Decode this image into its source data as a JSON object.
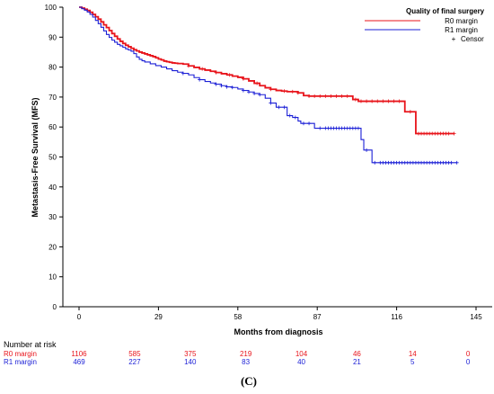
{
  "chart_data": {
    "type": "line",
    "title": "",
    "xlabel": "Months from diagnosis",
    "ylabel": "Metastasis-Free Survival (MFS)",
    "xlim": [
      0,
      145
    ],
    "ylim": [
      0,
      100
    ],
    "x_ticks": [
      0,
      29,
      58,
      87,
      116,
      145
    ],
    "y_ticks": [
      0,
      10,
      20,
      30,
      40,
      50,
      60,
      70,
      80,
      90,
      100
    ],
    "grid": false,
    "legend": {
      "title": "Quality of final surgery",
      "placement": "top-right",
      "censor_label": "Censor",
      "censor_symbol": "+"
    },
    "series": [
      {
        "name": "R0 margin",
        "color": "#e8141b",
        "points": [
          [
            0,
            100
          ],
          [
            1,
            99.7
          ],
          [
            2,
            99.3
          ],
          [
            3,
            98.9
          ],
          [
            4,
            98.3
          ],
          [
            5,
            97.6
          ],
          [
            6,
            96.8
          ],
          [
            7,
            96
          ],
          [
            8,
            95.1
          ],
          [
            9,
            94.1
          ],
          [
            10,
            93.2
          ],
          [
            11,
            92.2
          ],
          [
            12,
            91.2
          ],
          [
            13,
            90.3
          ],
          [
            14,
            89.4
          ],
          [
            15,
            88.6
          ],
          [
            16,
            87.9
          ],
          [
            17,
            87.3
          ],
          [
            18,
            86.8
          ],
          [
            19,
            86.3
          ],
          [
            20,
            85.8
          ],
          [
            21,
            85.4
          ],
          [
            22,
            85
          ],
          [
            23,
            84.7
          ],
          [
            24,
            84.4
          ],
          [
            25,
            84.1
          ],
          [
            26,
            83.8
          ],
          [
            27,
            83.5
          ],
          [
            28,
            83.1
          ],
          [
            29,
            82.7
          ],
          [
            30,
            82.4
          ],
          [
            31,
            82
          ],
          [
            32,
            81.8
          ],
          [
            33,
            81.6
          ],
          [
            34,
            81.4
          ],
          [
            35,
            81.3
          ],
          [
            36,
            81.2
          ],
          [
            38,
            81
          ],
          [
            40,
            80.4
          ],
          [
            42,
            79.9
          ],
          [
            44,
            79.4
          ],
          [
            46,
            79
          ],
          [
            48,
            78.6
          ],
          [
            50,
            78.2
          ],
          [
            52,
            77.8
          ],
          [
            54,
            77.4
          ],
          [
            56,
            77
          ],
          [
            58,
            76.6
          ],
          [
            60,
            76.1
          ],
          [
            62,
            75.4
          ],
          [
            64,
            74.6
          ],
          [
            66,
            73.8
          ],
          [
            68,
            73.1
          ],
          [
            70,
            72.6
          ],
          [
            72,
            72.2
          ],
          [
            74,
            72
          ],
          [
            76,
            71.8
          ],
          [
            78,
            71.8
          ],
          [
            80,
            71.4
          ],
          [
            82,
            70.5
          ],
          [
            84,
            70.3
          ],
          [
            87,
            70.3
          ],
          [
            90,
            70.3
          ],
          [
            93,
            70.3
          ],
          [
            96,
            70.3
          ],
          [
            98,
            70.3
          ],
          [
            100,
            69.2
          ],
          [
            102,
            68.6
          ],
          [
            106,
            68.6
          ],
          [
            108,
            68.6
          ],
          [
            110,
            68.6
          ],
          [
            112,
            68.6
          ],
          [
            114,
            68.6
          ],
          [
            116,
            68.6
          ],
          [
            118,
            68.6
          ],
          [
            119,
            65.1
          ],
          [
            122,
            65.1
          ],
          [
            123,
            57.8
          ],
          [
            127,
            57.8
          ],
          [
            130,
            57.8
          ],
          [
            133,
            57.8
          ],
          [
            137,
            57.8
          ]
        ]
      },
      {
        "name": "R1 margin",
        "color": "#1b1fd6",
        "points": [
          [
            0,
            100
          ],
          [
            1,
            99.5
          ],
          [
            2,
            99
          ],
          [
            3,
            98.4
          ],
          [
            4,
            97.6
          ],
          [
            5,
            96.7
          ],
          [
            6,
            95.6
          ],
          [
            7,
            94.5
          ],
          [
            8,
            93.3
          ],
          [
            9,
            92.1
          ],
          [
            10,
            90.9
          ],
          [
            11,
            89.9
          ],
          [
            12,
            89
          ],
          [
            13,
            88.3
          ],
          [
            14,
            87.6
          ],
          [
            15,
            87.1
          ],
          [
            16,
            86.6
          ],
          [
            17,
            86.1
          ],
          [
            18,
            85.7
          ],
          [
            19,
            85.3
          ],
          [
            20,
            84.5
          ],
          [
            21,
            83.4
          ],
          [
            22,
            82.6
          ],
          [
            23,
            82.1
          ],
          [
            24,
            81.7
          ],
          [
            26,
            81.1
          ],
          [
            28,
            80.5
          ],
          [
            30,
            80
          ],
          [
            32,
            79.4
          ],
          [
            34,
            78.8
          ],
          [
            36,
            78.3
          ],
          [
            38,
            77.9
          ],
          [
            40,
            77.4
          ],
          [
            42,
            76.5
          ],
          [
            44,
            75.8
          ],
          [
            46,
            75.2
          ],
          [
            48,
            74.7
          ],
          [
            50,
            74.3
          ],
          [
            52,
            73.8
          ],
          [
            54,
            73.4
          ],
          [
            56,
            73.2
          ],
          [
            58,
            72.7
          ],
          [
            60,
            72.2
          ],
          [
            62,
            71.7
          ],
          [
            64,
            71.2
          ],
          [
            66,
            70.8
          ],
          [
            68,
            69.6
          ],
          [
            70,
            68
          ],
          [
            72,
            66.6
          ],
          [
            75,
            66.6
          ],
          [
            76,
            63.8
          ],
          [
            78,
            63.2
          ],
          [
            80,
            62
          ],
          [
            81,
            61.2
          ],
          [
            85,
            61.2
          ],
          [
            86,
            59.6
          ],
          [
            90,
            59.6
          ],
          [
            94,
            59.6
          ],
          [
            98,
            59.6
          ],
          [
            102,
            59.6
          ],
          [
            103,
            55.8
          ],
          [
            104,
            52.3
          ],
          [
            106,
            52.3
          ],
          [
            107,
            48.1
          ],
          [
            112,
            48.1
          ],
          [
            118,
            48.1
          ],
          [
            124,
            48.1
          ],
          [
            130,
            48.1
          ],
          [
            138,
            48.1
          ]
        ]
      }
    ],
    "censor_marks": {
      "R0 margin": [
        40,
        45,
        50,
        55,
        60,
        65,
        70,
        75,
        78,
        80,
        84,
        86,
        88,
        90,
        92,
        94,
        96,
        98,
        101,
        103,
        105,
        107,
        109,
        111,
        113,
        115,
        117,
        121,
        124,
        125,
        126,
        127,
        128,
        129,
        130,
        131,
        132,
        133,
        134,
        135,
        137
      ],
      "R1 margin": [
        38,
        44,
        50,
        52,
        54,
        56,
        60,
        62,
        64,
        66,
        70,
        73,
        75,
        77,
        79,
        82,
        84,
        88,
        90,
        91,
        92,
        93,
        94,
        95,
        96,
        97,
        98,
        99,
        100,
        101,
        102,
        105,
        108,
        110,
        111,
        112,
        113,
        114,
        115,
        116,
        117,
        118,
        119,
        120,
        121,
        122,
        123,
        124,
        125,
        126,
        127,
        128,
        129,
        130,
        131,
        132,
        133,
        134,
        135,
        136,
        138
      ]
    },
    "risk_table": {
      "title": "Number at risk",
      "rows": [
        {
          "name": "R0 margin",
          "color": "#e8141b",
          "values": [
            "1106",
            "585",
            "375",
            "219",
            "104",
            "46",
            "14",
            "0"
          ]
        },
        {
          "name": "R1 margin",
          "color": "#1b1fd6",
          "values": [
            "469",
            "227",
            "140",
            "83",
            "40",
            "21",
            "5",
            "0"
          ]
        }
      ],
      "x_positions": [
        0,
        20.3,
        40.6,
        60.9,
        81.2,
        101.5,
        121.8,
        142.1
      ]
    },
    "panel_label": "(C)"
  }
}
